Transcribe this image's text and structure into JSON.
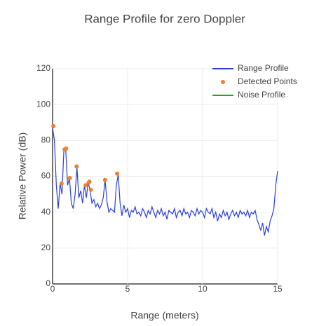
{
  "chart_data": {
    "type": "line",
    "title": "Range Profile for zero Doppler",
    "x_label": "Range (meters)",
    "y_label": "Relative Power (dB)",
    "xlim": [
      0,
      15
    ],
    "xticks": [
      0,
      5,
      10,
      15
    ],
    "ylim": [
      0,
      120
    ],
    "yticks": [
      0,
      20,
      40,
      60,
      80,
      100,
      120
    ],
    "grid": true,
    "legend": "top-right",
    "series": [
      {
        "name": "Range Profile",
        "type": "line",
        "color": "#2a3fd6",
        "x": [
          0,
          0.125,
          0.25,
          0.375,
          0.5,
          0.625,
          0.75,
          0.875,
          1,
          1.125,
          1.25,
          1.375,
          1.5,
          1.625,
          1.75,
          1.875,
          2,
          2.125,
          2.25,
          2.375,
          2.5,
          2.625,
          2.75,
          2.875,
          3,
          3.125,
          3.25,
          3.375,
          3.5,
          3.625,
          3.75,
          3.875,
          4,
          4.125,
          4.25,
          4.375,
          4.5,
          4.625,
          4.75,
          4.875,
          5,
          5.125,
          5.25,
          5.375,
          5.5,
          5.625,
          5.75,
          5.875,
          6,
          6.125,
          6.25,
          6.375,
          6.5,
          6.625,
          6.75,
          6.875,
          7,
          7.125,
          7.25,
          7.375,
          7.5,
          7.625,
          7.75,
          7.875,
          8,
          8.125,
          8.25,
          8.375,
          8.5,
          8.625,
          8.75,
          8.875,
          9,
          9.125,
          9.25,
          9.375,
          9.5,
          9.625,
          9.75,
          9.875,
          10,
          10.125,
          10.25,
          10.375,
          10.5,
          10.625,
          10.75,
          10.875,
          11,
          11.125,
          11.25,
          11.375,
          11.5,
          11.625,
          11.75,
          11.875,
          12,
          12.125,
          12.25,
          12.375,
          12.5,
          12.625,
          12.75,
          12.875,
          13,
          13.125,
          13.25,
          13.375,
          13.5,
          13.625,
          13.75,
          13.875,
          14,
          14.125,
          14.25,
          14.375,
          14.5,
          14.625,
          14.75,
          14.875,
          15
        ],
        "values": [
          87,
          80,
          55,
          42,
          56,
          50,
          74,
          75,
          55,
          59,
          45,
          42,
          50,
          65,
          48,
          52,
          45,
          55,
          48,
          57,
          52,
          45,
          47,
          43,
          45,
          42,
          44,
          48,
          58,
          46,
          40,
          42,
          41,
          40,
          55,
          61,
          45,
          38,
          44,
          40,
          42,
          37,
          41,
          40,
          43,
          39,
          40,
          38,
          42,
          40,
          37,
          41,
          39,
          43,
          40,
          37,
          41,
          39,
          42,
          38,
          40,
          36,
          41,
          40,
          39,
          42,
          37,
          40,
          41,
          38,
          42,
          39,
          40,
          37,
          41,
          40,
          38,
          42,
          39,
          41,
          40,
          37,
          42,
          40,
          39,
          42,
          37,
          40,
          35,
          39,
          37,
          41,
          38,
          40,
          36,
          39,
          41,
          38,
          40,
          37,
          41,
          39,
          40,
          38,
          41,
          37,
          40,
          39,
          41,
          36,
          33,
          30,
          34,
          27,
          32,
          29,
          35,
          38,
          42,
          55,
          63
        ]
      },
      {
        "name": "Detected Points",
        "type": "scatter",
        "color": "#f07f2e",
        "x": [
          0.05,
          0.6,
          0.8,
          0.9,
          1.15,
          1.6,
          2.2,
          2.4,
          2.45,
          2.55,
          3.5,
          4.3
        ],
        "values": [
          88,
          56,
          75,
          75.5,
          59,
          65.5,
          55,
          56.5,
          57,
          52.5,
          58,
          61.5
        ]
      },
      {
        "name": "Noise Profile",
        "type": "line",
        "color": "#2ca02c",
        "x": [],
        "values": []
      }
    ]
  }
}
